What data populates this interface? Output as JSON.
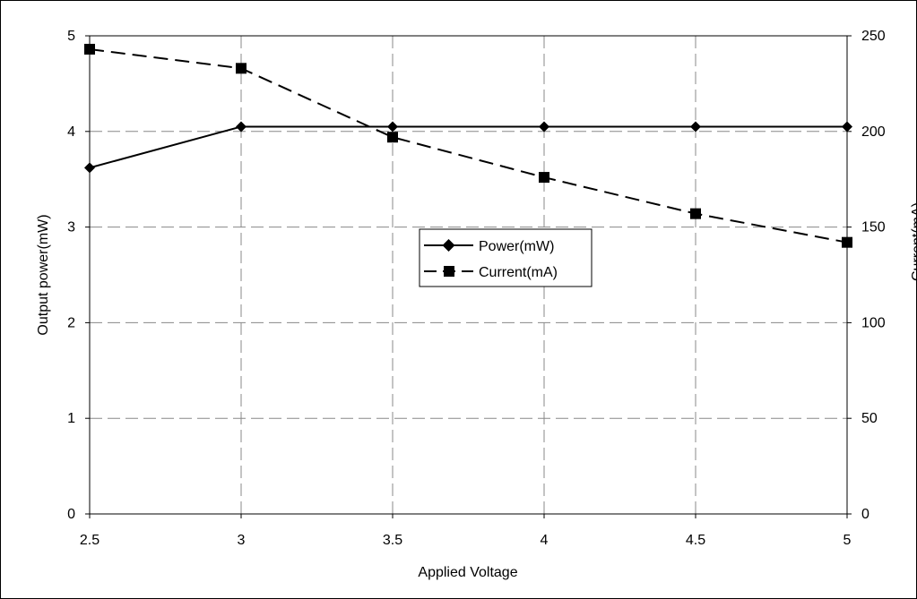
{
  "chart_data": {
    "type": "line",
    "xlabel": "Applied Voltage",
    "ylabel": "Output power(mW)",
    "y2label": "Current(mA)",
    "x": [
      2.5,
      3,
      3.5,
      4,
      4.5,
      5
    ],
    "xlim": [
      2.5,
      5
    ],
    "ylim": [
      0,
      5
    ],
    "y2lim": [
      0,
      250
    ],
    "x_ticks": [
      "2.5",
      "3",
      "3.5",
      "4",
      "4.5",
      "5"
    ],
    "y_ticks": [
      "0",
      "1",
      "2",
      "3",
      "4",
      "5"
    ],
    "y2_ticks": [
      "0",
      "50",
      "100",
      "150",
      "200",
      "250"
    ],
    "grid": true,
    "legend_position": "center",
    "series": [
      {
        "name": "Power(mW)",
        "axis": "left",
        "marker": "diamond",
        "line_style": "solid",
        "color": "#000000",
        "values": [
          3.62,
          4.05,
          4.05,
          4.05,
          4.05,
          4.05
        ]
      },
      {
        "name": "Current(mA)",
        "axis": "right",
        "marker": "square",
        "line_style": "dashed",
        "color": "#000000",
        "values": [
          243,
          233,
          197,
          176,
          157,
          142
        ]
      }
    ]
  }
}
